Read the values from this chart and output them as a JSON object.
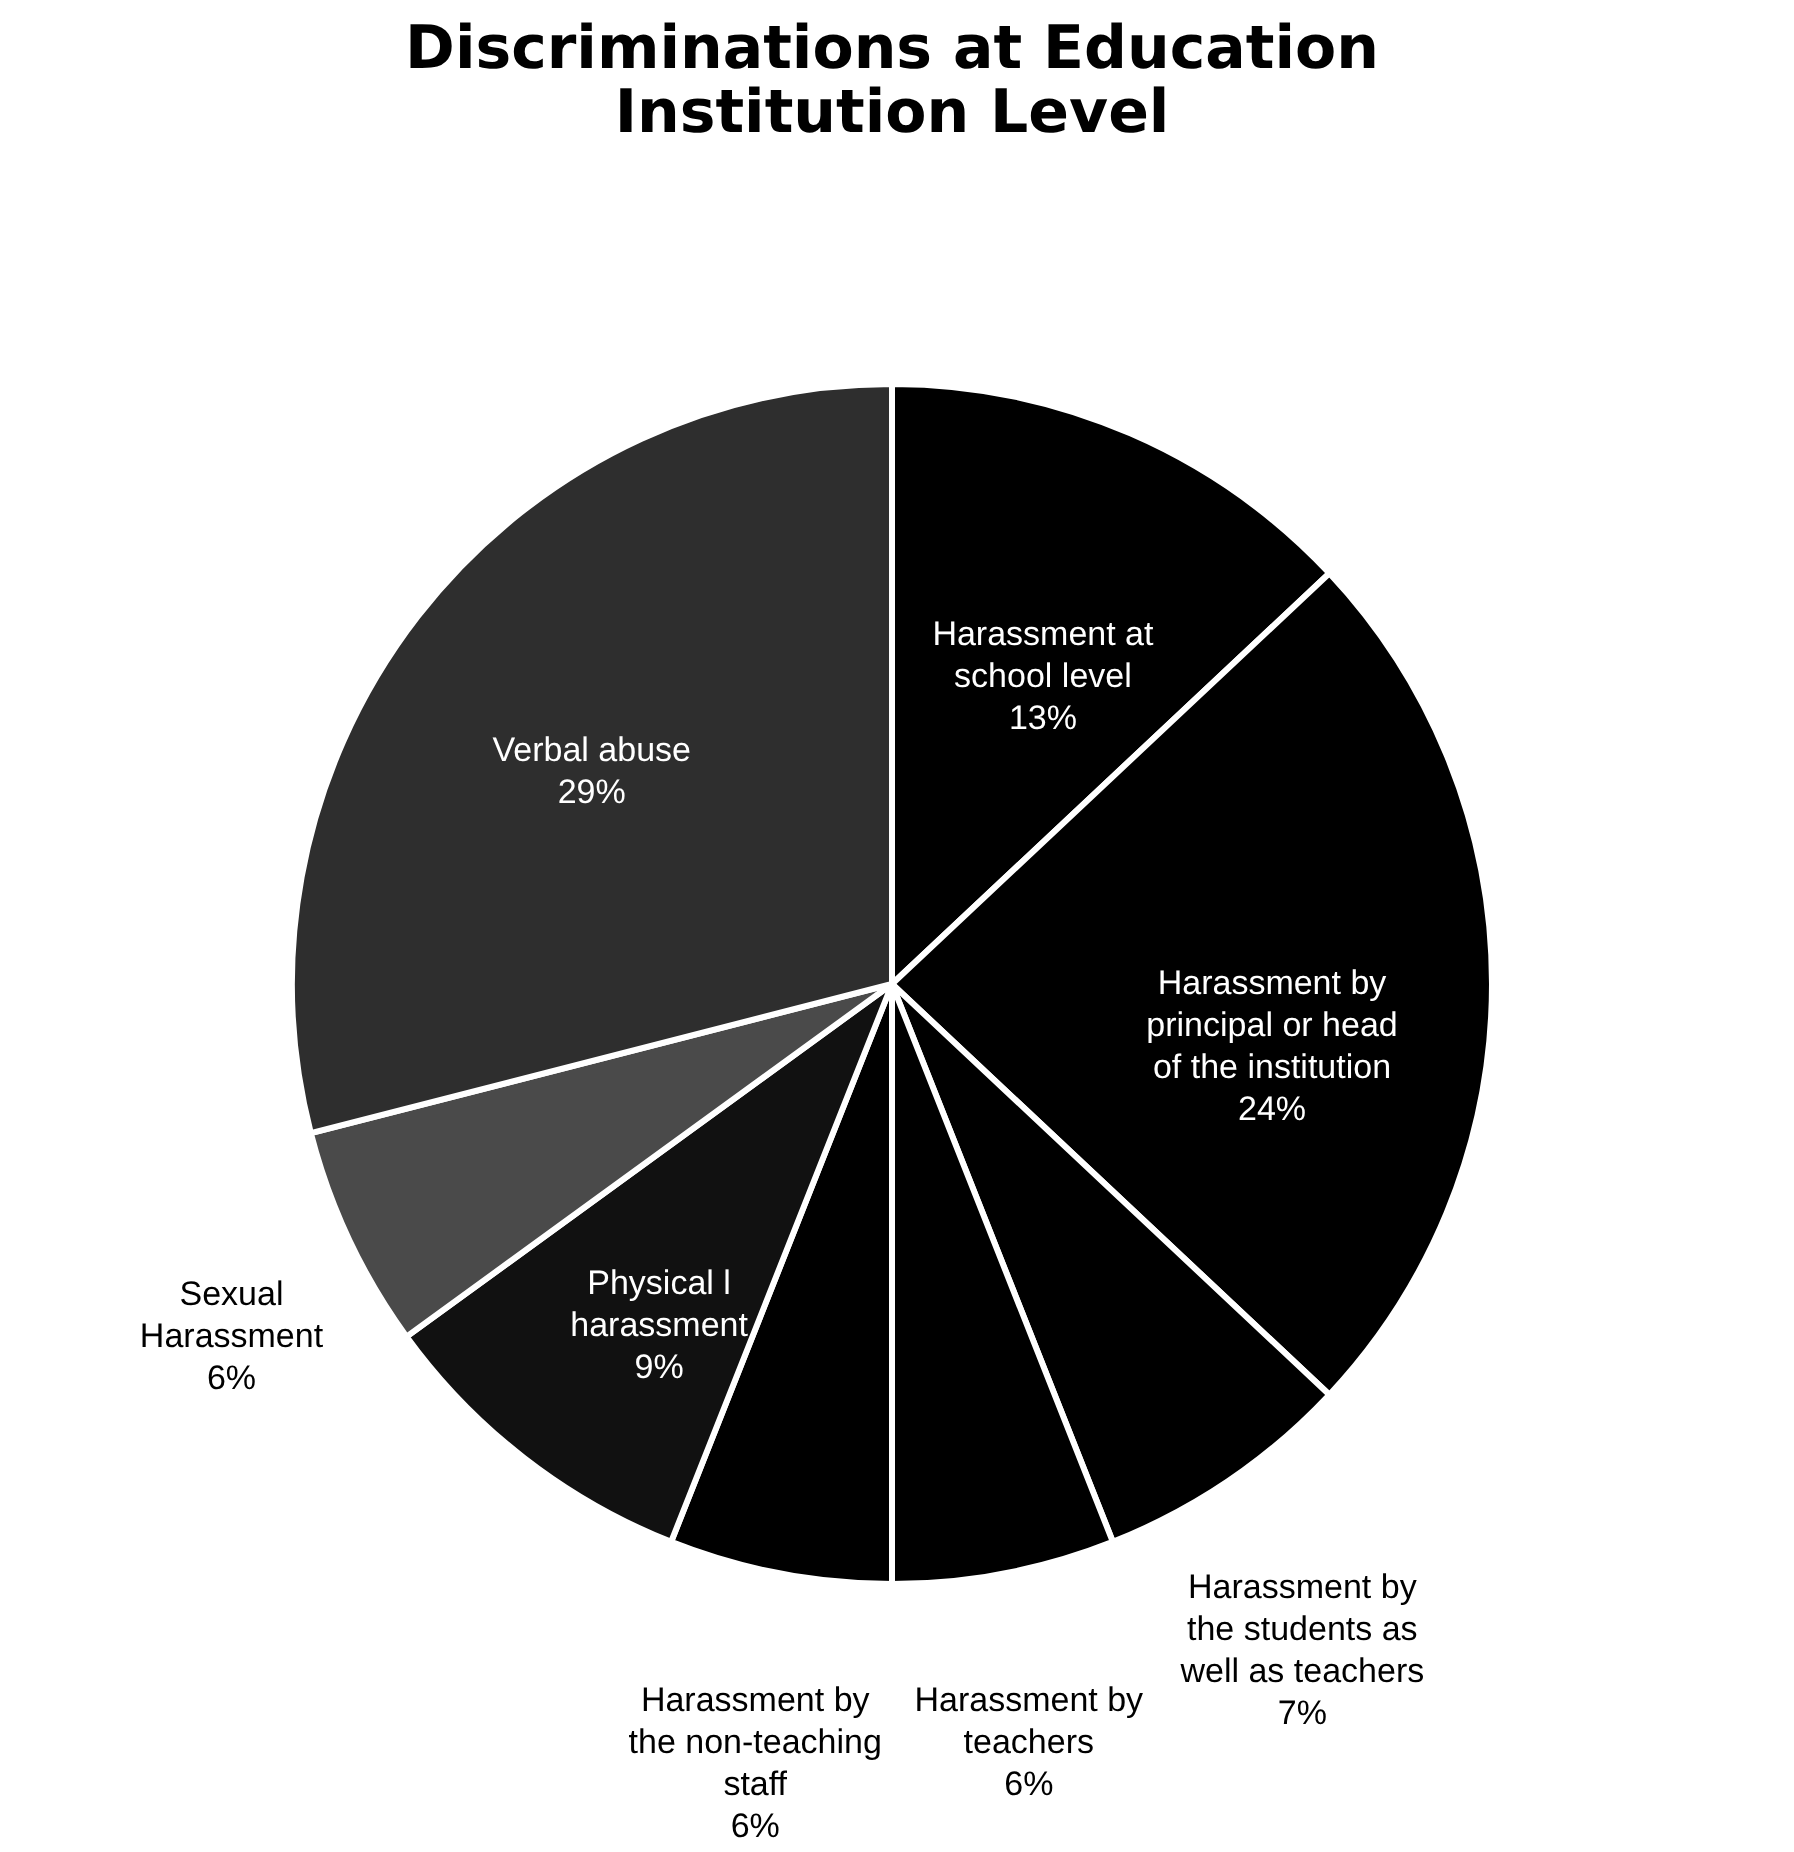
{
  "chart_data": {
    "type": "pie",
    "title": "Discriminations at Education Institution Level",
    "categories": [
      "Harassment at school level",
      "Harassment by principal or head of the institution",
      "Harassment by the students as well as teachers",
      "Harassment by teachers",
      "Harassment by the non-teaching staff",
      "Physical l harassment",
      "Sexual Harassment",
      "Verbal abuse"
    ],
    "values": [
      13,
      24,
      7,
      6,
      6,
      9,
      6,
      29
    ],
    "value_labels": [
      "13%",
      "24%",
      "7%",
      "6%",
      "6%",
      "9%",
      "6%",
      "29%"
    ],
    "colors": [
      "#000000",
      "#000000",
      "#000000",
      "#000000",
      "#000000",
      "#111111",
      "#4a4a4a",
      "#2e2e2e"
    ]
  }
}
